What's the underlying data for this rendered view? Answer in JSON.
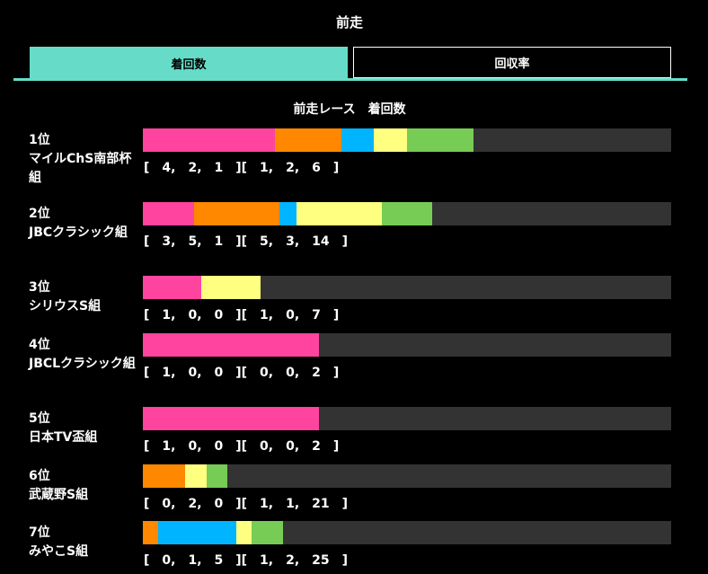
{
  "title": "前走",
  "tabs": [
    {
      "label": "着回数",
      "active": true
    },
    {
      "label": "回収率",
      "active": false
    }
  ],
  "section_title": "前走レース　着回数",
  "colors": {
    "first": "#ff44a0",
    "second": "#ff8800",
    "third": "#00b4ff",
    "fourth": "#ffff80",
    "fifth": "#77cc55",
    "rest": "#333333",
    "accent": "#66dcc8"
  },
  "groups": [
    {
      "label": "1位\nマイルChS南部杯組",
      "segments": [
        4,
        2,
        1,
        1,
        2,
        6
      ],
      "counts_text": "[　4,　2,　1　][　1,　2,　6　]"
    },
    {
      "label": "2位\nJBCクラシック組",
      "segments": [
        3,
        5,
        1,
        5,
        3,
        14
      ],
      "counts_text": "[　3,　5,　1　][　5,　3,　14　]"
    },
    {
      "label": "3位\nシリウスS組",
      "segments": [
        1,
        0,
        0,
        1,
        0,
        7
      ],
      "counts_text": "[　1,　0,　0　][　1,　0,　7　]"
    },
    {
      "label": "4位\nJBCLクラシック組",
      "segments": [
        1,
        0,
        0,
        0,
        0,
        2
      ],
      "counts_text": "[　1,　0,　0　][　0,　0,　2　]"
    },
    {
      "label": "5位\n日本TV盃組",
      "segments": [
        1,
        0,
        0,
        0,
        0,
        2
      ],
      "counts_text": "[　1,　0,　0　][　0,　0,　2　]"
    },
    {
      "label": "6位\n武蔵野S組",
      "segments": [
        0,
        2,
        0,
        1,
        1,
        21
      ],
      "counts_text": "[　0,　2,　0　][　1,　1,　21　]"
    },
    {
      "label": "7位\nみやこS組",
      "segments": [
        0,
        1,
        5,
        1,
        2,
        25
      ],
      "counts_text": "[　0,　1,　5　][　1,　2,　25　]"
    }
  ]
}
